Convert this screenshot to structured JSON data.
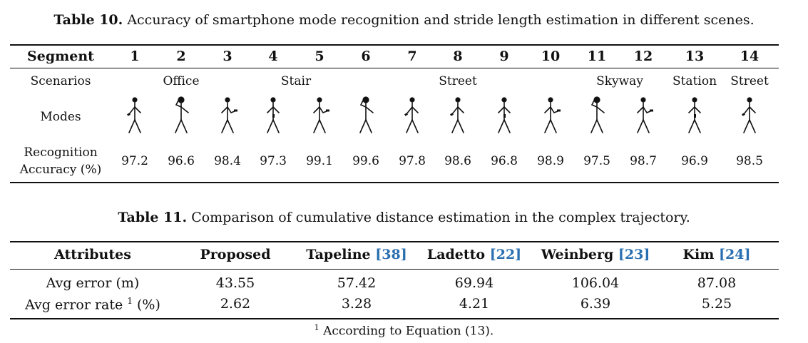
{
  "table10": {
    "caption_label": "Table 10.",
    "caption_text": "Accuracy of smartphone mode recognition and stride length estimation in different scenes.",
    "segment_header": "Segment",
    "segments": [
      "1",
      "2",
      "3",
      "4",
      "5",
      "6",
      "7",
      "8",
      "9",
      "10",
      "11",
      "12",
      "13",
      "14"
    ],
    "scenarios_label": "Scenarios",
    "scenarios": [
      "Office",
      "Stair",
      "Street",
      "Skyway",
      "Station",
      "Street"
    ],
    "modes_label": "Modes",
    "modes": [
      "swing",
      "calling",
      "texting",
      "pocket",
      "texting",
      "calling",
      "swing",
      "swing",
      "pocket",
      "texting",
      "calling",
      "texting",
      "pocket",
      "swing"
    ],
    "accuracy_label_line1": "Recognition",
    "accuracy_label_line2": "Accuracy (%)",
    "accuracy": [
      "97.2",
      "96.6",
      "98.4",
      "97.3",
      "99.1",
      "99.6",
      "97.8",
      "98.6",
      "96.8",
      "98.9",
      "97.5",
      "98.7",
      "96.9",
      "98.5"
    ]
  },
  "table11": {
    "caption_label": "Table 11.",
    "caption_text": "Comparison of cumulative distance estimation in the complex trajectory.",
    "headers": {
      "attributes": "Attributes",
      "proposed": "Proposed",
      "tapeline": "Tapeline",
      "tapeline_ref": "[38]",
      "ladetto": "Ladetto",
      "ladetto_ref": "[22]",
      "weinberg": "Weinberg",
      "weinberg_ref": "[23]",
      "kim": "Kim",
      "kim_ref": "[24]"
    },
    "rows": [
      {
        "label": "Avg error (m)",
        "values": [
          "43.55",
          "57.42",
          "69.94",
          "106.04",
          "87.08"
        ]
      },
      {
        "label_pre": "Avg error rate",
        "label_sup": "1",
        "label_post": "(%)",
        "values": [
          "2.62",
          "3.28",
          "4.21",
          "6.39",
          "5.25"
        ]
      }
    ],
    "footnote_mark": "1",
    "footnote_text": "According to Equation (13)."
  }
}
